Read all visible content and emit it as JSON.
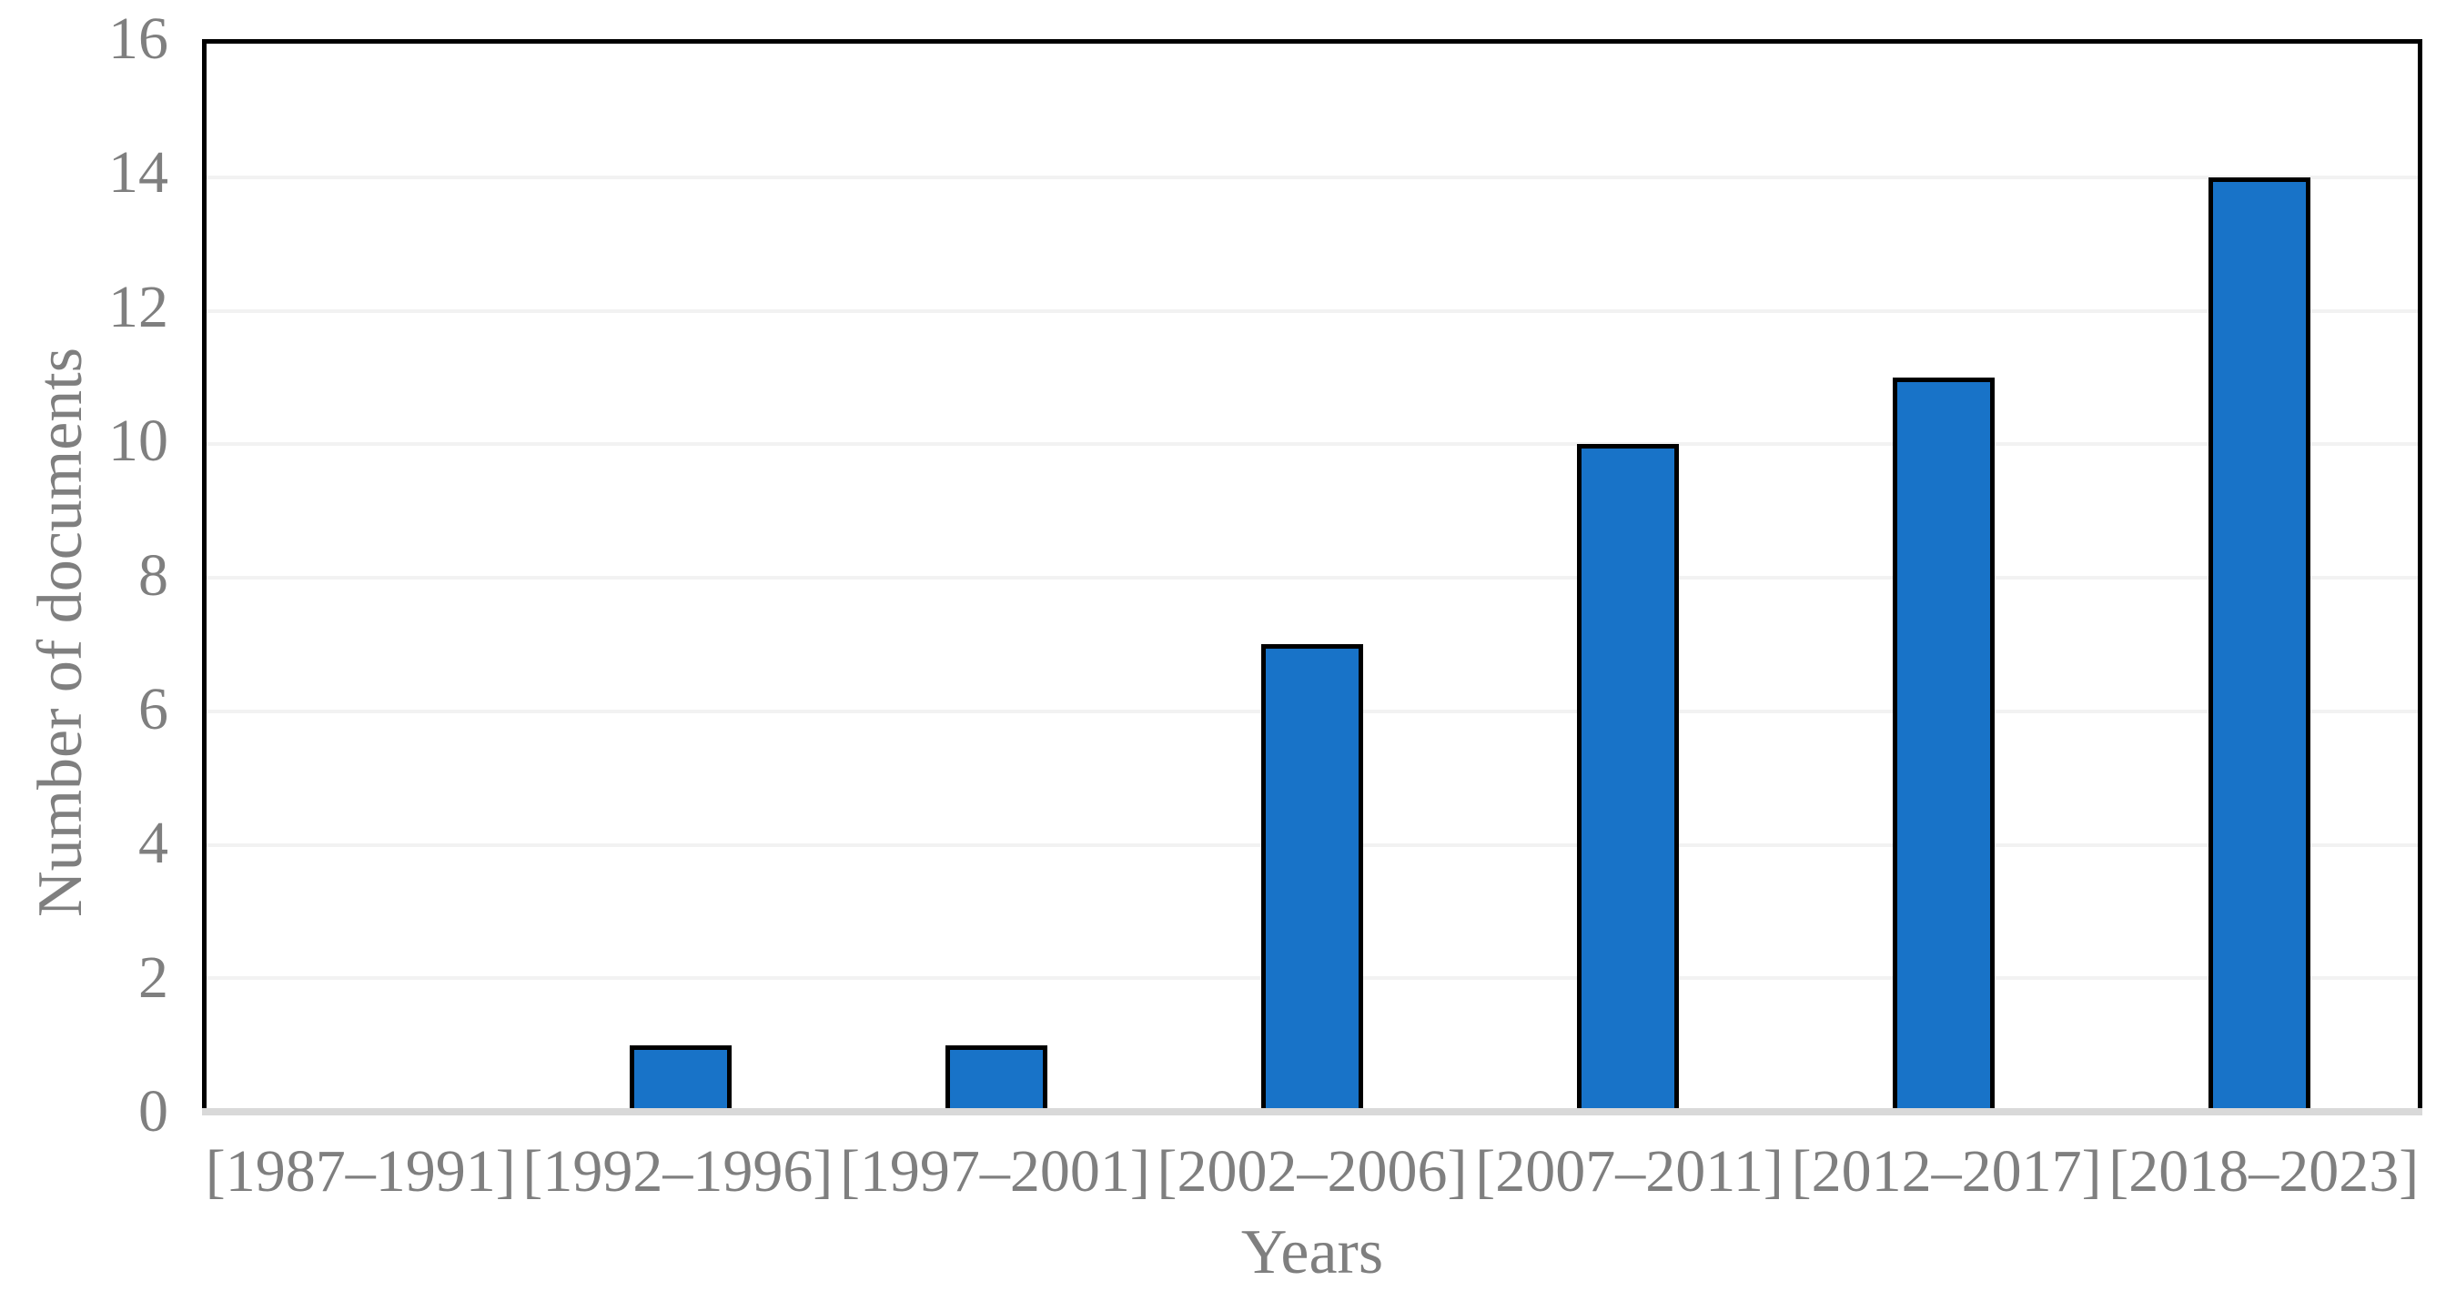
{
  "chart_data": {
    "type": "bar",
    "categories": [
      "[1987–1991]",
      "[1992–1996]",
      "[1997–2001]",
      "[2002–2006]",
      "[2007–2011]",
      "[2012–2017]",
      "[2018–2023]"
    ],
    "values": [
      0,
      1,
      1,
      7,
      10,
      11,
      14
    ],
    "title": "",
    "xlabel": "Years",
    "ylabel": "Number of documents",
    "ylim": [
      0,
      16
    ],
    "ytick_step": 2,
    "ytick_labels": [
      "0",
      "2",
      "4",
      "6",
      "8",
      "10",
      "12",
      "14",
      "16"
    ],
    "grid": true,
    "legend": "none",
    "colors": {
      "bar_fill": "#1873C8",
      "bar_border": "#000000",
      "plot_border": "#000000",
      "baseline": "#D9D9D9",
      "gridline": "#F2F2F2",
      "tick_text": "#7F7F7F",
      "axis_title_text": "#7F7F7F",
      "background": "#FFFFFF"
    }
  }
}
